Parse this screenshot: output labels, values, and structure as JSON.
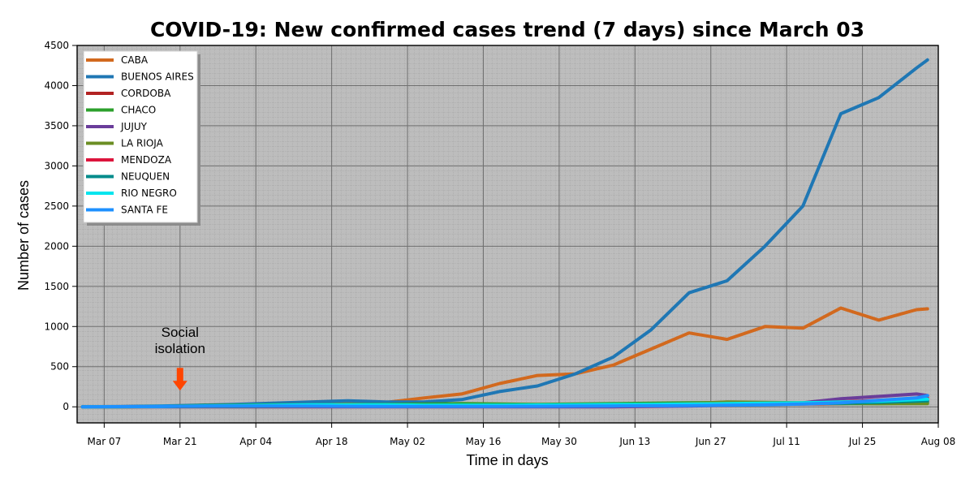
{
  "chart_data": {
    "type": "line",
    "title": "COVID-19: New confirmed cases trend (7 days) since March 03",
    "xlabel": "Time in days",
    "ylabel": "Number of cases",
    "x": [
      "2020-03-03",
      "2020-03-10",
      "2020-03-17",
      "2020-03-24",
      "2020-03-31",
      "2020-04-07",
      "2020-04-14",
      "2020-04-21",
      "2020-04-28",
      "2020-05-05",
      "2020-05-12",
      "2020-05-19",
      "2020-05-26",
      "2020-06-02",
      "2020-06-09",
      "2020-06-16",
      "2020-06-23",
      "2020-06-30",
      "2020-07-07",
      "2020-07-14",
      "2020-07-21",
      "2020-07-28",
      "2020-08-04",
      "2020-08-06"
    ],
    "xticks": [
      "Mar 07",
      "Mar 21",
      "Apr 04",
      "Apr 18",
      "May 02",
      "May 16",
      "May 30",
      "Jun 13",
      "Jun 27",
      "Jul 11",
      "Jul 25",
      "Aug 08"
    ],
    "xtick_dates": [
      "2020-03-07",
      "2020-03-21",
      "2020-04-04",
      "2020-04-18",
      "2020-05-02",
      "2020-05-16",
      "2020-05-30",
      "2020-06-13",
      "2020-06-27",
      "2020-07-11",
      "2020-07-25",
      "2020-08-08"
    ],
    "xlim": [
      "2020-03-02",
      "2020-08-08"
    ],
    "yticks": [
      0,
      500,
      1000,
      1500,
      2000,
      2500,
      3000,
      3500,
      4000,
      4500
    ],
    "ylim": [
      -200,
      4500
    ],
    "grid": "on",
    "legend_position": "top-left",
    "background_color": "#bdbdbd",
    "series": [
      {
        "name": "CABA",
        "color": "#d2691e",
        "values": [
          0,
          2,
          5,
          10,
          15,
          20,
          30,
          45,
          55,
          110,
          160,
          290,
          390,
          410,
          520,
          720,
          920,
          840,
          1000,
          980,
          1230,
          1080,
          1210,
          1220
        ]
      },
      {
        "name": "BUENOS AIRES",
        "color": "#1f77b4",
        "values": [
          0,
          3,
          10,
          20,
          30,
          45,
          60,
          75,
          60,
          60,
          90,
          190,
          260,
          410,
          620,
          960,
          1420,
          1570,
          2000,
          2500,
          3650,
          3850,
          4220,
          4320
        ]
      },
      {
        "name": "CORDOBA",
        "color": "#b22222",
        "values": [
          0,
          1,
          3,
          5,
          6,
          8,
          8,
          10,
          10,
          12,
          14,
          15,
          18,
          20,
          20,
          22,
          25,
          28,
          30,
          35,
          40,
          50,
          60,
          65
        ]
      },
      {
        "name": "CHACO",
        "color": "#2ca02c",
        "values": [
          0,
          1,
          5,
          15,
          20,
          25,
          25,
          30,
          30,
          35,
          40,
          35,
          30,
          35,
          40,
          45,
          50,
          55,
          45,
          45,
          40,
          40,
          45,
          50
        ]
      },
      {
        "name": "JUJUY",
        "color": "#6a3d9a",
        "values": [
          0,
          0,
          0,
          0,
          0,
          0,
          0,
          0,
          0,
          0,
          0,
          0,
          0,
          0,
          0,
          5,
          10,
          20,
          30,
          50,
          100,
          130,
          160,
          140
        ]
      },
      {
        "name": "LA RIOJA",
        "color": "#6b8e23",
        "values": [
          0,
          0,
          2,
          3,
          4,
          5,
          6,
          8,
          8,
          8,
          8,
          10,
          10,
          12,
          15,
          20,
          40,
          60,
          55,
          50,
          45,
          40,
          40,
          40
        ]
      },
      {
        "name": "MENDOZA",
        "color": "#dc143c",
        "values": [
          0,
          1,
          2,
          3,
          4,
          5,
          5,
          5,
          5,
          5,
          5,
          5,
          6,
          8,
          10,
          10,
          15,
          20,
          30,
          40,
          60,
          80,
          100,
          110
        ]
      },
      {
        "name": "NEUQUEN",
        "color": "#008b8b",
        "values": [
          0,
          1,
          3,
          5,
          6,
          8,
          10,
          10,
          12,
          15,
          15,
          15,
          18,
          20,
          22,
          25,
          30,
          30,
          35,
          40,
          45,
          55,
          70,
          75
        ]
      },
      {
        "name": "RIO NEGRO",
        "color": "#00e5ee",
        "values": [
          0,
          1,
          4,
          10,
          15,
          20,
          25,
          25,
          25,
          20,
          20,
          20,
          22,
          25,
          28,
          30,
          35,
          40,
          45,
          50,
          60,
          70,
          90,
          95
        ]
      },
      {
        "name": "SANTA FE",
        "color": "#1e90ff",
        "values": [
          0,
          2,
          5,
          8,
          10,
          10,
          8,
          6,
          5,
          5,
          5,
          5,
          6,
          8,
          10,
          12,
          15,
          20,
          25,
          35,
          50,
          80,
          110,
          140
        ]
      }
    ],
    "annotations": [
      {
        "text_lines": [
          "Social",
          "isolation"
        ],
        "x": "2020-03-21",
        "y": 0,
        "arrow_color": "#ff4500"
      }
    ]
  }
}
